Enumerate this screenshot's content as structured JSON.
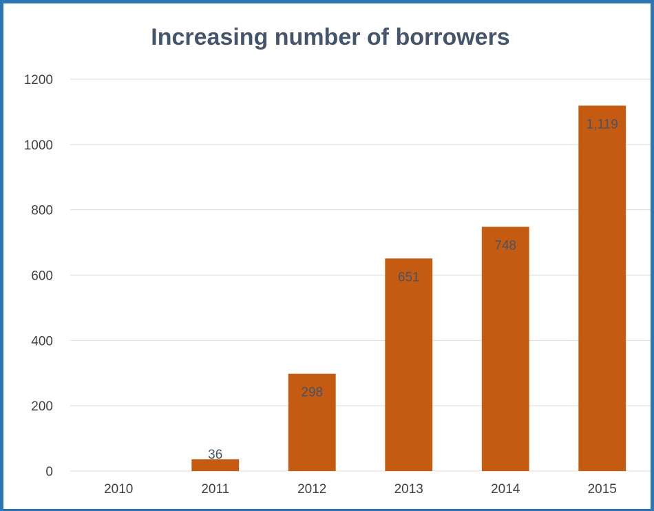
{
  "chart_data": {
    "type": "bar",
    "title": "Increasing number of borrowers",
    "xlabel": "",
    "ylabel": "",
    "categories": [
      "2010",
      "2011",
      "2012",
      "2013",
      "2014",
      "2015"
    ],
    "values": [
      0,
      36,
      298,
      651,
      748,
      1119
    ],
    "data_labels": [
      "",
      "36",
      "298",
      "651",
      "748",
      "1,119"
    ],
    "ylim": [
      0,
      1200
    ],
    "yticks": [
      0,
      200,
      400,
      600,
      800,
      1000,
      1200
    ],
    "grid": true,
    "legend": "none",
    "colors": {
      "bar": "#C55A11",
      "grid": "#D9D9D9",
      "frame": "#2E75B6",
      "title": "#44546A"
    }
  }
}
